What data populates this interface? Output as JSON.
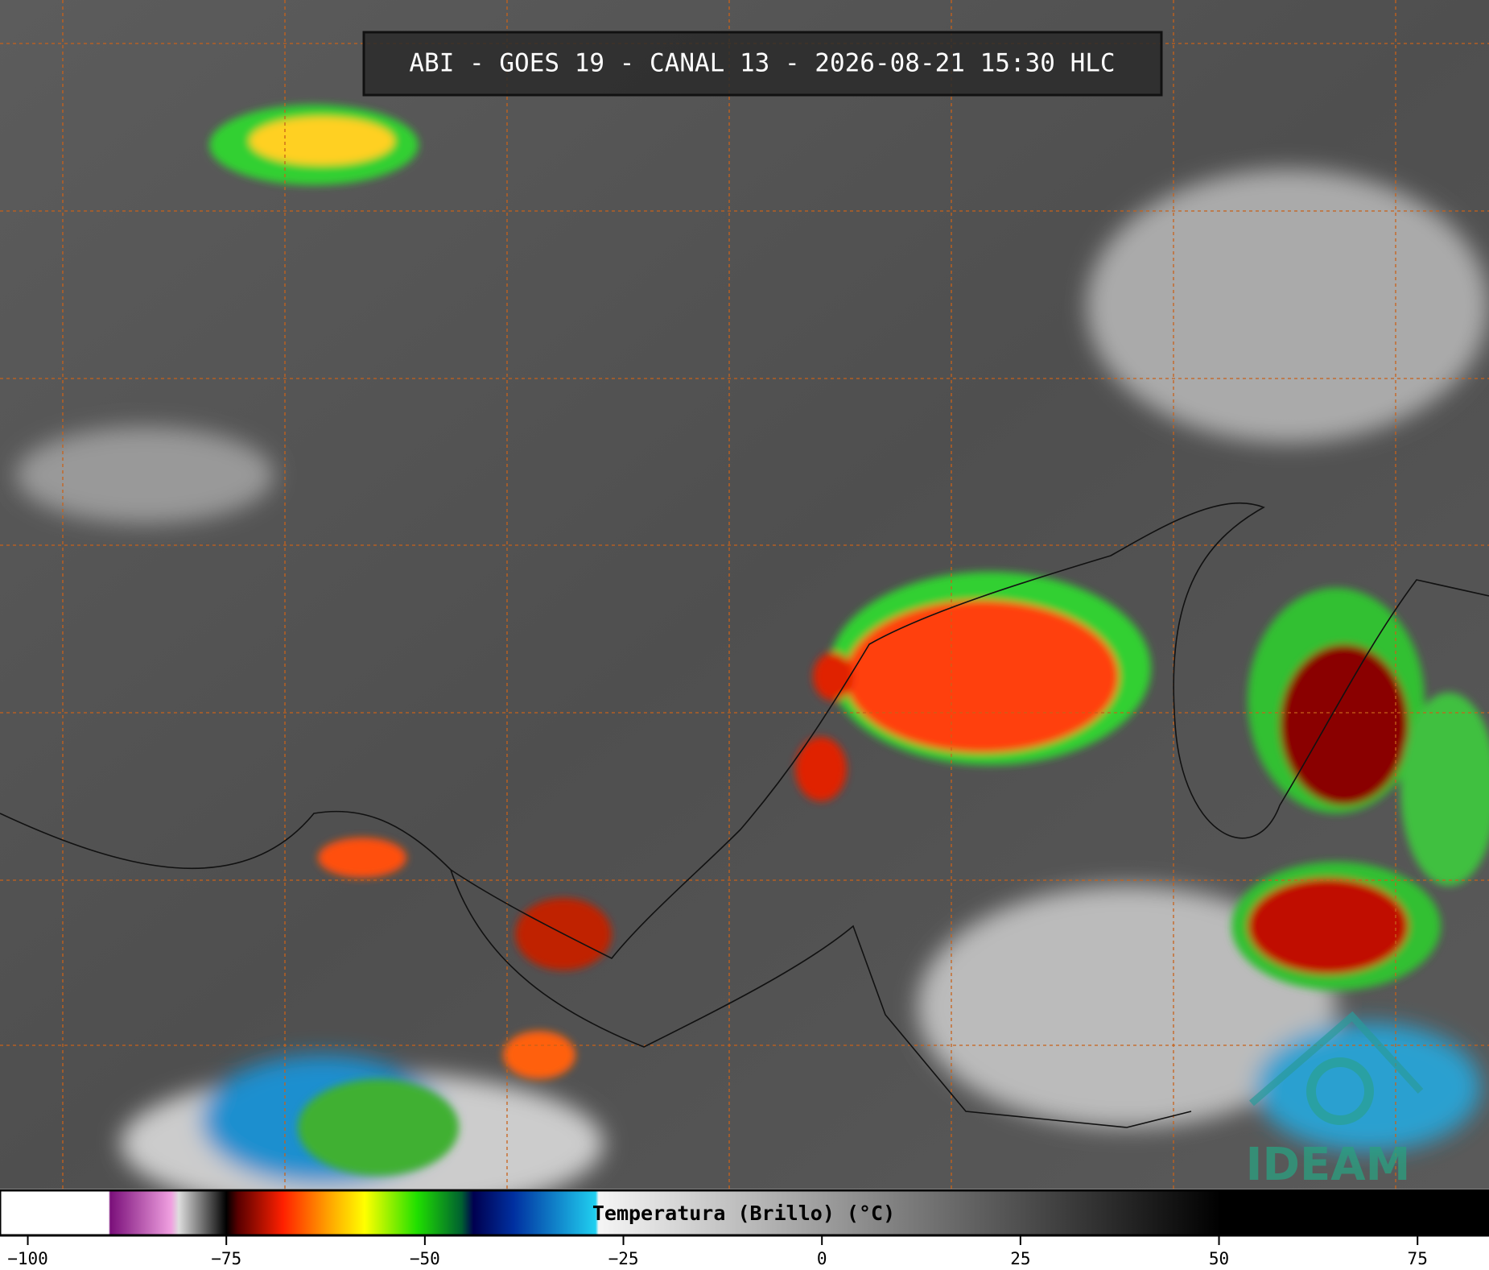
{
  "header": {
    "title": "ABI - GOES 19 - CANAL 13 - 2026-08-21 15:30 HLC"
  },
  "logo": {
    "text": "IDEAM"
  },
  "colorbar": {
    "label": "Temperatura (Brillo) (°C)",
    "lim": [
      -103.5,
      84
    ],
    "ticks": [
      {
        "value": -100,
        "label": "−100"
      },
      {
        "value": -75,
        "label": "−75"
      },
      {
        "value": -50,
        "label": "−50"
      },
      {
        "value": -25,
        "label": "−25"
      },
      0,
      25,
      50,
      75
    ]
  }
}
